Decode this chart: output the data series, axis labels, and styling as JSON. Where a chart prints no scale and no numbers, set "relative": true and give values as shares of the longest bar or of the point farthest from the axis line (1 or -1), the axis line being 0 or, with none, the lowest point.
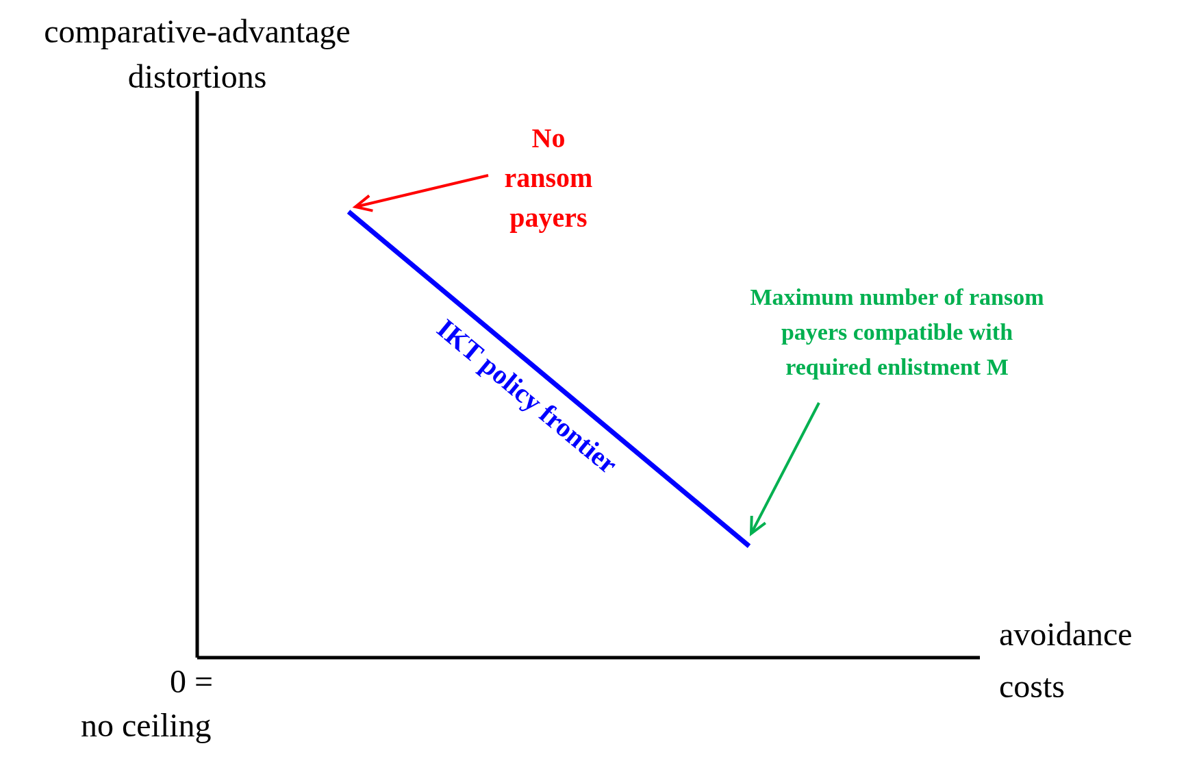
{
  "chart_data": {
    "type": "line",
    "relative": true,
    "ylabel": "comparative-advantage distortions",
    "xlabel": "avoidance costs",
    "categories": [
      null,
      null
    ],
    "marker": "none",
    "line_style": "solid",
    "series": [
      {
        "name": "IKT policy frontier",
        "color": "#0000ff",
        "values": [
          1,
          0.25
        ]
      }
    ],
    "annotations": [
      "No ransom payers",
      "Maximum number of ransom payers compatible with required enlistment M",
      "0 = no ceiling"
    ]
  }
}
